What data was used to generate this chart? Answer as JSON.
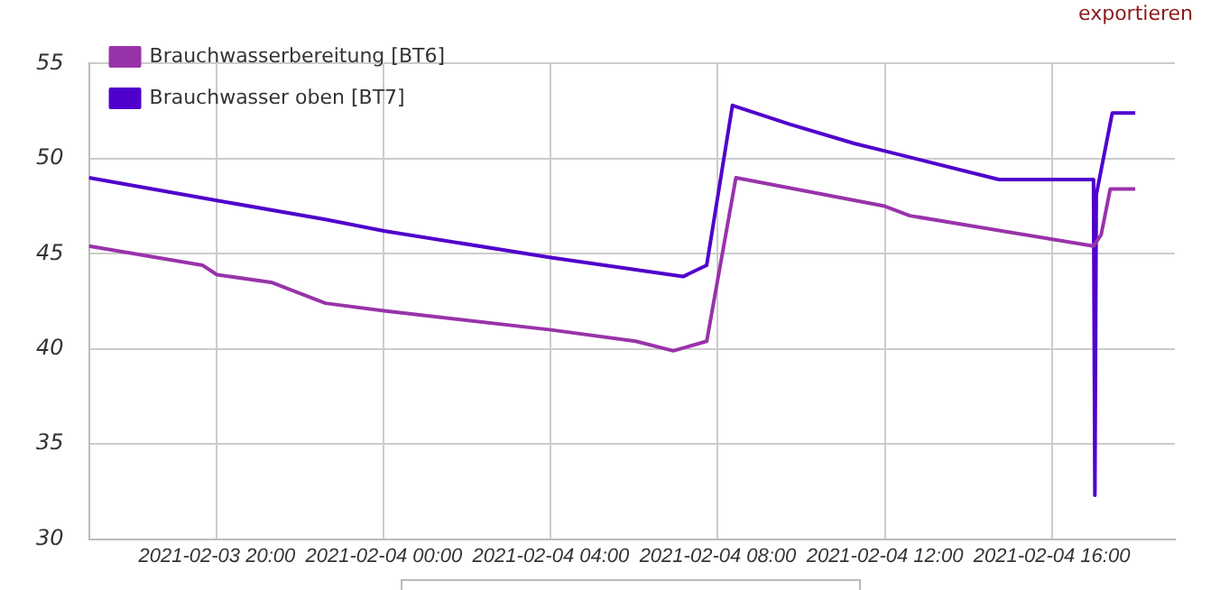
{
  "chart_data": {
    "type": "line",
    "annotations": [
      "exportieren"
    ],
    "xlim": [
      "2021-02-03T16:56",
      "2021-02-04T18:57"
    ],
    "xticks": [
      {
        "value": "2021-02-03T20:00",
        "label": "2021-02-03 20:00"
      },
      {
        "value": "2021-02-04T00:00",
        "label": "2021-02-04 00:00"
      },
      {
        "value": "2021-02-04T04:00",
        "label": "2021-02-04 04:00"
      },
      {
        "value": "2021-02-04T08:00",
        "label": "2021-02-04 08:00"
      },
      {
        "value": "2021-02-04T12:00",
        "label": "2021-02-04 12:00"
      },
      {
        "value": "2021-02-04T16:00",
        "label": "2021-02-04 16:00"
      }
    ],
    "ylim": [
      30,
      55
    ],
    "yticks": [
      30,
      35,
      40,
      45,
      50,
      55
    ],
    "grid": true,
    "legend": "top left",
    "marker": "none",
    "line_style": "solid",
    "series": [
      {
        "name": "Brauchwasserbereitung [BT6]",
        "color": "#9933aa",
        "x": [
          "2021-02-03T16:56",
          "2021-02-03T19:39",
          "2021-02-03T20:00",
          "2021-02-03T21:18",
          "2021-02-03T22:36",
          "2021-02-04T00:00",
          "2021-02-04T04:00",
          "2021-02-04T06:02",
          "2021-02-04T06:56",
          "2021-02-04T07:44",
          "2021-02-04T08:26",
          "2021-02-04T12:00",
          "2021-02-04T12:36",
          "2021-02-04T17:00",
          "2021-02-04T17:11",
          "2021-02-04T17:24",
          "2021-02-04T18:00"
        ],
        "values": [
          45.4,
          44.4,
          43.9,
          43.5,
          42.4,
          42.0,
          41.0,
          40.4,
          39.9,
          40.4,
          49.0,
          47.5,
          47.0,
          45.4,
          46.0,
          48.4,
          48.4
        ]
      },
      {
        "name": "Brauchwasser oben [BT7]",
        "color": "#5000cc",
        "x": [
          "2021-02-03T16:56",
          "2021-02-03T20:00",
          "2021-02-03T22:36",
          "2021-02-04T00:00",
          "2021-02-04T04:00",
          "2021-02-04T07:10",
          "2021-02-04T07:44",
          "2021-02-04T08:21",
          "2021-02-04T09:44",
          "2021-02-04T11:16",
          "2021-02-04T12:00",
          "2021-02-04T14:44",
          "2021-02-04T15:50",
          "2021-02-04T17:00",
          "2021-02-04T17:02",
          "2021-02-04T17:04",
          "2021-02-04T17:27",
          "2021-02-04T18:00"
        ],
        "values": [
          49.0,
          47.8,
          46.8,
          46.2,
          44.8,
          43.8,
          44.4,
          52.8,
          51.8,
          50.8,
          50.4,
          48.9,
          48.9,
          48.9,
          32.3,
          48.1,
          52.4,
          52.4
        ]
      }
    ]
  }
}
